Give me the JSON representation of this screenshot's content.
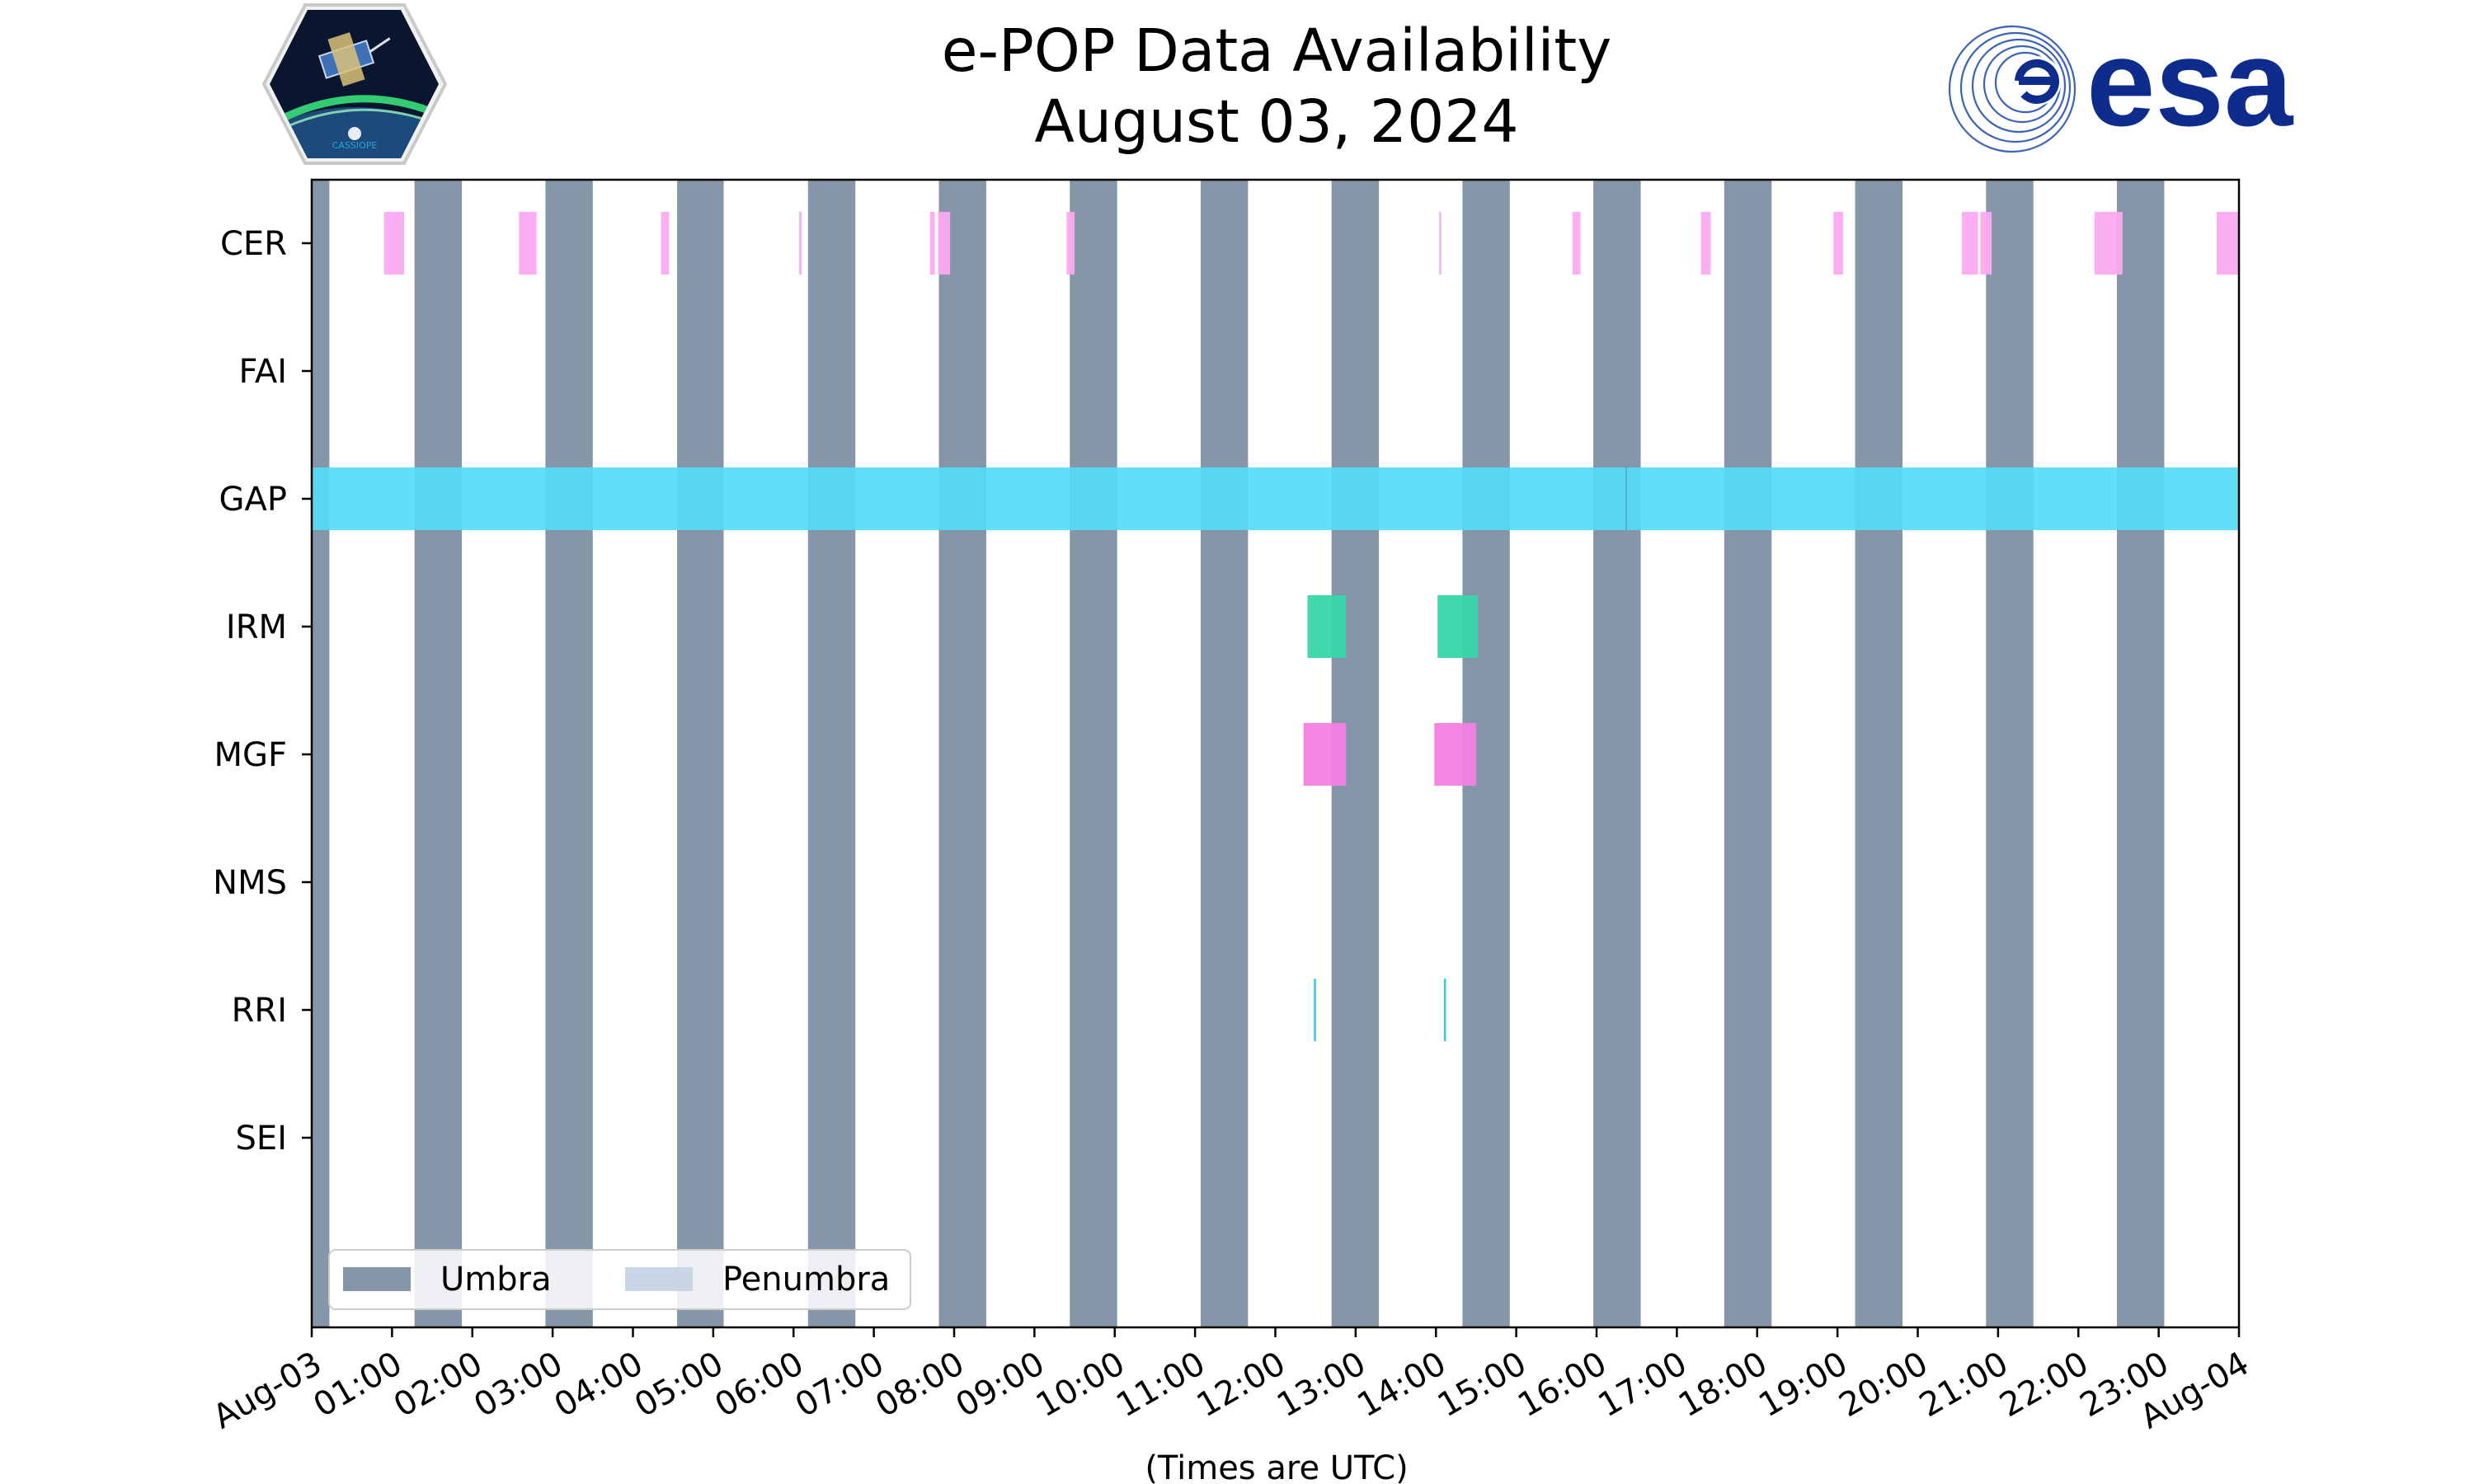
{
  "chart_data": {
    "type": "timeline",
    "title": "e-POP Data Availability",
    "subtitle": "August 03, 2024",
    "xlabel": "(Times are UTC)",
    "xlim": [
      0,
      24
    ],
    "x_ticks": [
      "Aug-03",
      "01:00",
      "02:00",
      "03:00",
      "04:00",
      "05:00",
      "06:00",
      "07:00",
      "08:00",
      "09:00",
      "10:00",
      "11:00",
      "12:00",
      "13:00",
      "14:00",
      "15:00",
      "16:00",
      "17:00",
      "18:00",
      "19:00",
      "20:00",
      "21:00",
      "22:00",
      "23:00",
      "Aug-04"
    ],
    "rows": [
      "CER",
      "FAI",
      "GAP",
      "IRM",
      "MGF",
      "NMS",
      "RRI",
      "SEI"
    ],
    "umbra": [
      [
        0.0,
        0.22
      ],
      [
        1.28,
        1.87
      ],
      [
        2.91,
        3.5
      ],
      [
        4.55,
        5.13
      ],
      [
        6.18,
        6.77
      ],
      [
        7.81,
        8.4
      ],
      [
        9.44,
        10.03
      ],
      [
        11.07,
        11.66
      ],
      [
        12.7,
        13.29
      ],
      [
        14.33,
        14.92
      ],
      [
        15.96,
        16.55
      ],
      [
        17.59,
        18.18
      ],
      [
        19.22,
        19.81
      ],
      [
        20.85,
        21.44
      ],
      [
        22.48,
        23.07
      ]
    ],
    "penumbra": [],
    "intervals": {
      "CER": [
        [
          0.9,
          1.15
        ],
        [
          2.58,
          2.8
        ],
        [
          4.35,
          4.45
        ],
        [
          6.07,
          6.1
        ],
        [
          7.7,
          7.76
        ],
        [
          7.8,
          7.95
        ],
        [
          9.4,
          9.5
        ],
        [
          14.04,
          14.06
        ],
        [
          15.7,
          15.8
        ],
        [
          17.3,
          17.42
        ],
        [
          18.95,
          19.07
        ],
        [
          20.55,
          20.75
        ],
        [
          20.78,
          20.92
        ],
        [
          22.2,
          22.55
        ],
        [
          23.72,
          24.0
        ]
      ],
      "FAI": [],
      "GAP": [
        [
          0.0,
          24.0
        ]
      ],
      "IRM": [
        [
          12.4,
          12.88
        ],
        [
          14.02,
          14.52
        ]
      ],
      "MGF": [
        [
          12.35,
          12.88
        ],
        [
          13.98,
          14.5
        ]
      ],
      "NMS": [],
      "RRI": [
        [
          12.48,
          12.5
        ],
        [
          14.1,
          14.12
        ]
      ],
      "SEI": []
    },
    "legend": {
      "position": "lower-left",
      "entries": [
        {
          "label": "Umbra",
          "color": "#8596a8"
        },
        {
          "label": "Penumbra",
          "color": "#c9d6e6"
        }
      ]
    }
  },
  "colors": {
    "umbra": "#8596a8",
    "penumbra": "#c9d6e6",
    "CER": "#fbaaf0",
    "GAP": "#55dbf7",
    "IRM": "#38d6aa",
    "MGF": "#f47fe3",
    "RRI": "#2ec4e0",
    "logo_blue": "#0d2c8c"
  },
  "logos": {
    "cassiope_text": "CASSIOPE",
    "esa_text": "esa"
  }
}
